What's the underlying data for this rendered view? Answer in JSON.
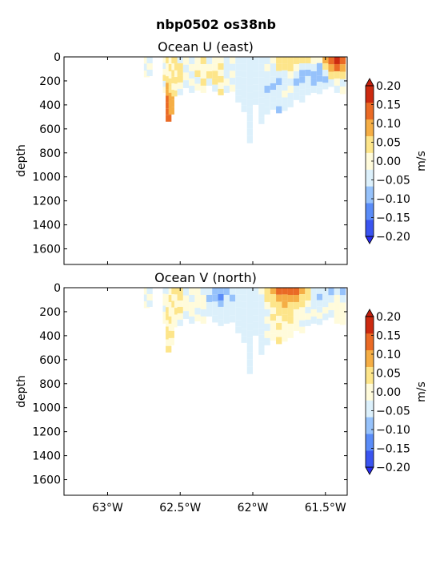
{
  "figure": {
    "title": "nbp0502 os38nb"
  },
  "chart_data": [
    {
      "type": "heatmap",
      "title": "Ocean U (east)",
      "xlabel": "",
      "ylabel": "depth",
      "x_range_deg": [
        -63.3,
        -61.35
      ],
      "y_range": [
        1730,
        0
      ],
      "y_inverted": true,
      "yticks": [
        "0",
        "200",
        "400",
        "600",
        "800",
        "1000",
        "1200",
        "1400",
        "1600"
      ],
      "ytick_values": [
        0,
        200,
        400,
        600,
        800,
        1000,
        1200,
        1400,
        1600
      ],
      "xtick_values": [
        -63,
        -62.5,
        -62,
        -61.5
      ],
      "colorbar": {
        "label": "m/s",
        "levels": [
          -0.2,
          -0.15,
          -0.1,
          -0.05,
          0,
          0.05,
          0.1,
          0.15,
          0.2
        ],
        "tick_labels": [
          "−0.20",
          "−0.15",
          "−0.10",
          "−0.05",
          "0.00",
          "0.05",
          "0.10",
          "0.15",
          "0.20"
        ],
        "colors": [
          "#3a54f0",
          "#5a8cf8",
          "#96c2fb",
          "#dcf0fb",
          "#fffbdb",
          "#fde58a",
          "#f5ae45",
          "#ea6a25",
          "#cc2a10"
        ],
        "extend": "both"
      },
      "profiles": [
        {
          "x": -62.73,
          "zmax": 170,
          "v": [
            0.02,
            -0.03,
            0.02
          ]
        },
        {
          "x": -62.71,
          "zmax": 160,
          "v": [
            -0.02,
            0.03,
            -0.02
          ]
        },
        {
          "x": -62.6,
          "zmax": 300,
          "v": [
            0.04,
            -0.03,
            0.03,
            0.05,
            -0.02,
            0.04
          ]
        },
        {
          "x": -62.58,
          "zmax": 540,
          "v": [
            0.05,
            0.03,
            0.04,
            0.06,
            0.11,
            0.14,
            0.17,
            0.16,
            0.15,
            0.16
          ]
        },
        {
          "x": -62.56,
          "zmax": 480,
          "v": [
            0.03,
            0.06,
            0.04,
            0.07,
            0.09,
            0.13,
            0.12,
            0.14
          ]
        },
        {
          "x": -62.54,
          "zmax": 330,
          "v": [
            0.07,
            0.04,
            0.09,
            0.05,
            0.03,
            0.06
          ]
        },
        {
          "x": -62.52,
          "zmax": 280,
          "v": [
            0.08,
            0.05,
            0.03,
            0.06,
            0.02
          ]
        },
        {
          "x": -62.5,
          "zmax": 320,
          "v": [
            -0.03,
            0.05,
            0.06,
            0.08,
            0.04,
            -0.02
          ]
        },
        {
          "x": -62.46,
          "zmax": 260,
          "v": [
            0.02,
            -0.03,
            0.01,
            -0.04
          ]
        },
        {
          "x": -62.42,
          "zmax": 300,
          "v": [
            -0.03,
            0.02,
            -0.04,
            0.01,
            -0.02
          ]
        },
        {
          "x": -62.38,
          "zmax": 280,
          "v": [
            0.03,
            0.04,
            0.06,
            -0.02,
            0.02
          ]
        },
        {
          "x": -62.34,
          "zmax": 300,
          "v": [
            0.05,
            0.03,
            0.04,
            0.06,
            0.02
          ]
        },
        {
          "x": -62.3,
          "zmax": 240,
          "v": [
            -0.03,
            0.03,
            0.06,
            -0.02
          ]
        },
        {
          "x": -62.26,
          "zmax": 290,
          "v": [
            0.04,
            0.02,
            0.07,
            0.09,
            -0.03
          ]
        },
        {
          "x": -62.22,
          "zmax": 320,
          "v": [
            0.02,
            0.06,
            0.03,
            0.05,
            0.04,
            0.06
          ]
        },
        {
          "x": -62.18,
          "zmax": 300,
          "v": [
            -0.04,
            -0.02,
            -0.03,
            0.02,
            -0.03
          ]
        },
        {
          "x": -62.14,
          "zmax": 290,
          "v": [
            0.03,
            -0.03,
            0.04,
            -0.02,
            0.02
          ]
        },
        {
          "x": -62.1,
          "zmax": 380,
          "v": [
            -0.02,
            -0.04,
            -0.03,
            -0.02,
            -0.04,
            -0.03,
            -0.02
          ]
        },
        {
          "x": -62.06,
          "zmax": 460,
          "v": [
            -0.03,
            -0.02,
            -0.04,
            -0.03,
            -0.02,
            -0.03,
            -0.04,
            -0.02
          ]
        },
        {
          "x": -62.02,
          "zmax": 720,
          "v": [
            -0.03,
            -0.04,
            -0.02,
            -0.03,
            -0.05,
            -0.02,
            -0.03,
            -0.04,
            -0.02,
            -0.03,
            -0.04,
            -0.02
          ]
        },
        {
          "x": -61.98,
          "zmax": 400,
          "v": [
            -0.03,
            -0.02,
            -0.04,
            -0.03,
            -0.05,
            -0.02,
            -0.03
          ]
        },
        {
          "x": -61.94,
          "zmax": 560,
          "v": [
            -0.04,
            -0.02,
            -0.03,
            -0.02,
            -0.04,
            -0.03,
            -0.05,
            -0.02,
            -0.03,
            -0.02
          ]
        },
        {
          "x": -61.9,
          "zmax": 480,
          "v": [
            -0.02,
            0.03,
            -0.03,
            -0.04,
            -0.06,
            -0.03,
            -0.02,
            -0.04
          ]
        },
        {
          "x": -61.86,
          "zmax": 440,
          "v": [
            0.02,
            -0.03,
            -0.05,
            -0.03,
            -0.07,
            -0.04,
            -0.03,
            -0.02
          ]
        },
        {
          "x": -61.82,
          "zmax": 470,
          "v": [
            0.08,
            0.05,
            -0.04,
            -0.06,
            -0.03,
            -0.05,
            -0.04,
            -0.06
          ]
        },
        {
          "x": -61.78,
          "zmax": 450,
          "v": [
            0.09,
            0.06,
            -0.03,
            -0.05,
            -0.04,
            0.03,
            -0.02,
            -0.04
          ]
        },
        {
          "x": -61.74,
          "zmax": 420,
          "v": [
            0.06,
            0.08,
            0.04,
            -0.03,
            0.03,
            -0.04,
            -0.03
          ]
        },
        {
          "x": -61.7,
          "zmax": 360,
          "v": [
            0.07,
            0.04,
            -0.04,
            -0.07,
            -0.05,
            -0.03
          ]
        },
        {
          "x": -61.66,
          "zmax": 380,
          "v": [
            0.05,
            -0.03,
            -0.06,
            -0.08,
            -0.05,
            -0.04,
            -0.02
          ]
        },
        {
          "x": -61.62,
          "zmax": 320,
          "v": [
            0.06,
            -0.04,
            -0.07,
            -0.05,
            -0.03,
            -0.02
          ]
        },
        {
          "x": -61.58,
          "zmax": 300,
          "v": [
            0.04,
            -0.05,
            -0.08,
            -0.06,
            -0.04
          ]
        },
        {
          "x": -61.54,
          "zmax": 310,
          "v": [
            0.03,
            -0.06,
            -0.09,
            -0.07,
            -0.04,
            -0.03
          ]
        },
        {
          "x": -61.5,
          "zmax": 270,
          "v": [
            0.13,
            0.08,
            -0.05,
            -0.07,
            -0.03
          ]
        },
        {
          "x": -61.46,
          "zmax": 250,
          "v": [
            0.19,
            0.14,
            0.06,
            -0.04
          ]
        },
        {
          "x": -61.42,
          "zmax": 300,
          "v": [
            0.21,
            0.16,
            0.09,
            0.04,
            -0.03
          ]
        },
        {
          "x": -61.38,
          "zmax": 310,
          "v": [
            0.18,
            0.12,
            0.05,
            -0.02,
            0.03
          ]
        }
      ]
    },
    {
      "type": "heatmap",
      "title": "Ocean V (north)",
      "xlabel": "",
      "ylabel": "depth",
      "x_range_deg": [
        -63.3,
        -61.35
      ],
      "y_range": [
        1730,
        0
      ],
      "y_inverted": true,
      "yticks": [
        "0",
        "200",
        "400",
        "600",
        "800",
        "1000",
        "1200",
        "1400",
        "1600"
      ],
      "ytick_values": [
        0,
        200,
        400,
        600,
        800,
        1000,
        1200,
        1400,
        1600
      ],
      "xticks": [
        "63°W",
        "62.5°W",
        "62°W",
        "61.5°W"
      ],
      "xtick_values": [
        -63,
        -62.5,
        -62,
        -61.5
      ],
      "colorbar": {
        "label": "m/s",
        "levels": [
          -0.2,
          -0.15,
          -0.1,
          -0.05,
          0,
          0.05,
          0.1,
          0.15,
          0.2
        ],
        "tick_labels": [
          "−0.20",
          "−0.15",
          "−0.10",
          "−0.05",
          "0.00",
          "0.05",
          "0.10",
          "0.15",
          "0.20"
        ],
        "colors": [
          "#3a54f0",
          "#5a8cf8",
          "#96c2fb",
          "#dcf0fb",
          "#fffbdb",
          "#fde58a",
          "#f5ae45",
          "#ea6a25",
          "#cc2a10"
        ],
        "extend": "both"
      },
      "profiles": [
        {
          "x": -62.73,
          "zmax": 170,
          "v": [
            0.02,
            -0.02,
            0.01
          ]
        },
        {
          "x": -62.71,
          "zmax": 160,
          "v": [
            -0.02,
            0.02,
            -0.03
          ]
        },
        {
          "x": -62.6,
          "zmax": 300,
          "v": [
            -0.03,
            0.03,
            0.02,
            -0.02,
            0.03,
            0.02
          ]
        },
        {
          "x": -62.58,
          "zmax": 540,
          "v": [
            -0.02,
            0.04,
            0.03,
            0.05,
            0.06,
            0.04,
            0.07,
            0.05,
            0.04,
            0.06
          ]
        },
        {
          "x": -62.56,
          "zmax": 480,
          "v": [
            0.03,
            0.05,
            0.02,
            0.04,
            0.06,
            0.03,
            0.05,
            0.04
          ]
        },
        {
          "x": -62.54,
          "zmax": 330,
          "v": [
            0.06,
            0.03,
            0.07,
            0.04,
            0.02,
            0.03
          ]
        },
        {
          "x": -62.52,
          "zmax": 280,
          "v": [
            0.07,
            0.04,
            0.03,
            0.05,
            0.02
          ]
        },
        {
          "x": -62.5,
          "zmax": 320,
          "v": [
            0.08,
            0.06,
            0.04,
            0.07,
            0.03,
            -0.02
          ]
        },
        {
          "x": -62.46,
          "zmax": 260,
          "v": [
            -0.02,
            0.03,
            0.02,
            -0.03
          ]
        },
        {
          "x": -62.42,
          "zmax": 300,
          "v": [
            0.03,
            -0.02,
            0.04,
            0.02,
            -0.02
          ]
        },
        {
          "x": -62.38,
          "zmax": 280,
          "v": [
            0.02,
            0.04,
            0.03,
            -0.02,
            0.02
          ]
        },
        {
          "x": -62.34,
          "zmax": 300,
          "v": [
            -0.03,
            0.02,
            0.03,
            -0.02,
            0.03
          ]
        },
        {
          "x": -62.3,
          "zmax": 240,
          "v": [
            -0.04,
            -0.06,
            -0.03,
            -0.02
          ]
        },
        {
          "x": -62.26,
          "zmax": 290,
          "v": [
            -0.07,
            -0.09,
            -0.05,
            -0.03,
            -0.02
          ]
        },
        {
          "x": -62.22,
          "zmax": 320,
          "v": [
            -0.09,
            -0.11,
            -0.06,
            -0.04,
            -0.03,
            -0.02
          ]
        },
        {
          "x": -62.18,
          "zmax": 300,
          "v": [
            -0.06,
            -0.04,
            -0.03,
            -0.05,
            -0.02
          ]
        },
        {
          "x": -62.14,
          "zmax": 290,
          "v": [
            -0.04,
            -0.06,
            -0.03,
            -0.02,
            -0.04
          ]
        },
        {
          "x": -62.1,
          "zmax": 380,
          "v": [
            -0.03,
            -0.02,
            -0.04,
            -0.03,
            -0.02,
            -0.04,
            -0.03
          ]
        },
        {
          "x": -62.06,
          "zmax": 460,
          "v": [
            -0.02,
            -0.04,
            -0.03,
            -0.02,
            -0.03,
            -0.04,
            -0.02,
            -0.03
          ]
        },
        {
          "x": -62.02,
          "zmax": 720,
          "v": [
            -0.03,
            -0.02,
            -0.04,
            -0.03,
            -0.02,
            -0.03,
            -0.04,
            -0.02,
            -0.03,
            -0.04,
            -0.02,
            -0.03
          ]
        },
        {
          "x": -61.98,
          "zmax": 400,
          "v": [
            -0.02,
            -0.04,
            -0.03,
            -0.05,
            -0.02,
            -0.03,
            -0.04
          ]
        },
        {
          "x": -61.94,
          "zmax": 560,
          "v": [
            0.02,
            -0.03,
            -0.02,
            -0.04,
            -0.03,
            -0.02,
            -0.04,
            -0.03,
            -0.02,
            -0.03
          ]
        },
        {
          "x": -61.9,
          "zmax": 480,
          "v": [
            0.07,
            0.05,
            0.03,
            -0.02,
            0.04,
            -0.03,
            0.02,
            -0.02
          ]
        },
        {
          "x": -61.86,
          "zmax": 440,
          "v": [
            0.11,
            0.08,
            0.05,
            0.03,
            0.06,
            0.03,
            0.04,
            0.02
          ]
        },
        {
          "x": -61.82,
          "zmax": 470,
          "v": [
            0.16,
            0.12,
            0.09,
            0.06,
            0.04,
            0.07,
            0.03,
            0.05
          ]
        },
        {
          "x": -61.78,
          "zmax": 450,
          "v": [
            0.18,
            0.14,
            0.1,
            0.07,
            0.05,
            0.03,
            0.04,
            0.02
          ]
        },
        {
          "x": -61.74,
          "zmax": 420,
          "v": [
            0.17,
            0.12,
            0.08,
            0.05,
            0.07,
            0.03,
            0.02
          ]
        },
        {
          "x": -61.7,
          "zmax": 360,
          "v": [
            0.15,
            0.1,
            0.06,
            0.04,
            0.02,
            0.03
          ]
        },
        {
          "x": -61.66,
          "zmax": 380,
          "v": [
            0.12,
            0.08,
            0.05,
            0.03,
            0.02,
            -0.02,
            0.02
          ]
        },
        {
          "x": -61.62,
          "zmax": 320,
          "v": [
            0.09,
            0.06,
            0.03,
            -0.02,
            0.02,
            -0.02
          ]
        },
        {
          "x": -61.58,
          "zmax": 300,
          "v": [
            -0.03,
            -0.05,
            -0.02,
            0.02,
            -0.02
          ]
        },
        {
          "x": -61.54,
          "zmax": 310,
          "v": [
            -0.04,
            -0.06,
            -0.03,
            -0.02,
            0.02,
            -0.02
          ]
        },
        {
          "x": -61.5,
          "zmax": 270,
          "v": [
            -0.05,
            -0.03,
            -0.02,
            0.02,
            -0.02
          ]
        },
        {
          "x": -61.46,
          "zmax": 250,
          "v": [
            -0.06,
            -0.04,
            0.02,
            -0.02
          ]
        },
        {
          "x": -61.42,
          "zmax": 300,
          "v": [
            -0.03,
            0.02,
            0.03,
            0.02,
            0.03
          ]
        },
        {
          "x": -61.38,
          "zmax": 310,
          "v": [
            -0.07,
            -0.04,
            0.02,
            0.03,
            0.02
          ]
        }
      ]
    }
  ]
}
